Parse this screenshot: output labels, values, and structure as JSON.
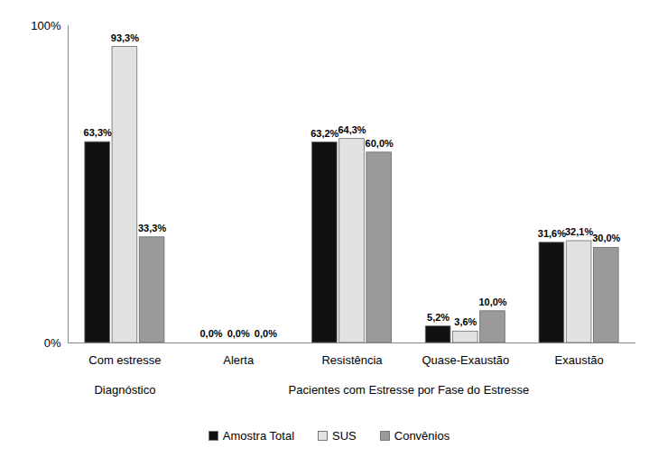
{
  "chart_data": {
    "type": "bar",
    "categories": [
      "Com estresse",
      "Alerta",
      "Resistência",
      "Quase-Exaustão",
      "Exaustão"
    ],
    "category_groups": [
      {
        "name": "Diagnóstico",
        "members": [
          "Com estresse"
        ]
      },
      {
        "name": "Pacientes com Estresse por Fase do Estresse",
        "members": [
          "Alerta",
          "Resistência",
          "Quase-Exaustão",
          "Exaustão"
        ]
      }
    ],
    "series": [
      {
        "name": "Amostra Total",
        "color": "#111111",
        "values": [
          63.3,
          0,
          63.2,
          5.2,
          31.6
        ],
        "value_labels": [
          "63,3%",
          "0,0%",
          "63,2%",
          "5,2%",
          "31,6%"
        ]
      },
      {
        "name": "SUS",
        "color": "#e2e2e2",
        "values": [
          93.3,
          0,
          64.3,
          3.6,
          32.1
        ],
        "value_labels": [
          "93,3%",
          "0,0%",
          "64,3%",
          "3,6%",
          "32,1%"
        ]
      },
      {
        "name": "Convênios",
        "color": "#9a9a9a",
        "values": [
          33.3,
          0,
          60.0,
          10.0,
          30.0
        ],
        "value_labels": [
          "33,3%",
          "0,0%",
          "60,0%",
          "10,0%",
          "30,0%"
        ]
      }
    ],
    "ylim": [
      0,
      100
    ],
    "yticks": [
      {
        "value": 0,
        "label": "0%"
      },
      {
        "value": 100,
        "label": "100%"
      }
    ],
    "grid": false,
    "data_labels": true,
    "legend": "bottom"
  }
}
